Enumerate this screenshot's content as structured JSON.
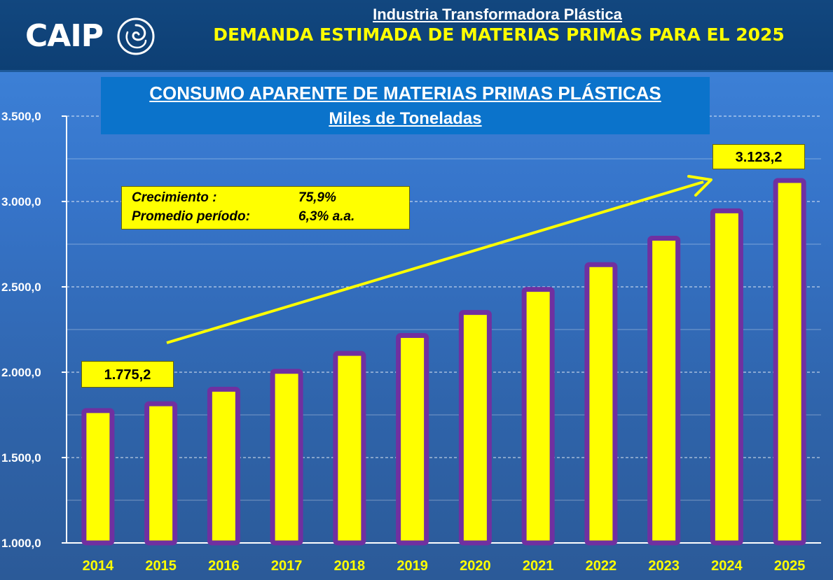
{
  "header": {
    "logo": "CAIP",
    "subtitle": "Industria Transformadora Plástica",
    "title": "DEMANDA ESTIMADA DE MATERIAS PRIMAS PARA EL 2025"
  },
  "chart_data": {
    "type": "bar",
    "title": "CONSUMO APARENTE DE MATERIAS PRIMAS PLÁSTICAS",
    "subtitle": "Miles de Toneladas",
    "categories": [
      "2014",
      "2015",
      "2016",
      "2017",
      "2018",
      "2019",
      "2020",
      "2021",
      "2022",
      "2023",
      "2024",
      "2025"
    ],
    "values": [
      1775.2,
      1815,
      1900,
      2005,
      2110,
      2215,
      2350,
      2485,
      2630,
      2785,
      2945,
      3123.2
    ],
    "ylim": [
      1000,
      3500
    ],
    "yticks": [
      1000,
      1500,
      2000,
      2500,
      3000,
      3500
    ],
    "ytick_labels": [
      "1.000,0",
      "1.500,0",
      "2.000,0",
      "2.500,0",
      "3.000,0",
      "3.500,0"
    ],
    "grid": true,
    "colors": {
      "bar_fill": "#ffff00",
      "bar_border": "#7030a0",
      "arrow": "#ffff00"
    },
    "annotations": {
      "start_value": "1.775,2",
      "end_value": "3.123,2",
      "growth_label": "Crecimiento :",
      "growth_value": "75,9%",
      "average_label": "Promedio período:",
      "average_value": "6,3% a.a."
    }
  }
}
